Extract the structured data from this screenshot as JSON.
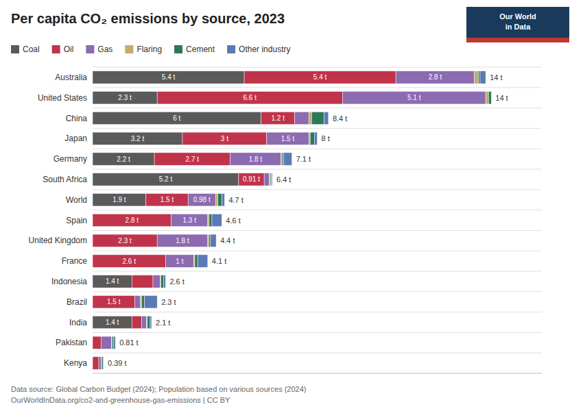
{
  "chart_data": {
    "type": "bar",
    "orientation": "horizontal",
    "stacked": true,
    "title": "Per capita CO₂ emissions by source, 2023",
    "source": "Data source: Global Carbon Budget (2024); Population based on various sources (2024)",
    "source_url": "OurWorldInData.org/co2-and-greenhouse-gas-emissions | CC BY",
    "annotations": [
      "Our World",
      "in Data"
    ],
    "categories": [
      "Australia",
      "United States",
      "China",
      "Japan",
      "Germany",
      "South Africa",
      "World",
      "Spain",
      "United Kingdom",
      "France",
      "Indonesia",
      "Brazil",
      "India",
      "Pakistan",
      "Kenya"
    ],
    "series": [
      {
        "name": "Coal",
        "color": "#5a5a5a",
        "values": [
          5.4,
          2.3,
          6.0,
          3.2,
          2.2,
          5.2,
          1.9,
          0.0,
          0.0,
          0.0,
          1.4,
          0.0,
          1.4,
          0.0,
          0.0
        ],
        "value_labels": [
          "5.4 t",
          "2.3 t",
          "6 t",
          "3.2 t",
          "2.2 t",
          "5.2 t",
          "1.9 t",
          null,
          null,
          null,
          "1.4 t",
          null,
          "1.4 t",
          null,
          null
        ]
      },
      {
        "name": "Oil",
        "color": "#c0344b",
        "values": [
          5.4,
          6.6,
          1.2,
          3.0,
          2.7,
          0.91,
          1.5,
          2.8,
          2.3,
          2.6,
          0.75,
          1.5,
          0.35,
          0.3,
          0.22
        ],
        "value_labels": [
          "5.4 t",
          "6.6 t",
          "1.2 t",
          "3 t",
          "2.7 t",
          "0.91 t",
          "1.5 t",
          "2.8 t",
          "2.3 t",
          "2.6 t",
          null,
          "1.5 t",
          null,
          null,
          null
        ]
      },
      {
        "name": "Gas",
        "color": "#8c6bb1",
        "values": [
          2.8,
          5.1,
          0.5,
          1.5,
          1.8,
          0.18,
          0.98,
          1.3,
          1.8,
          1.0,
          0.25,
          0.2,
          0.17,
          0.37,
          0.09
        ],
        "value_labels": [
          "2.8 t",
          "5.1 t",
          null,
          "1.5 t",
          "1.8 t",
          null,
          "0.98 t",
          "1.3 t",
          "1.8 t",
          "1 t",
          null,
          null,
          null,
          null,
          null
        ]
      },
      {
        "name": "Flaring",
        "color": "#c8a96e",
        "values": [
          0.14,
          0.1,
          0.1,
          0.05,
          0.05,
          0.04,
          0.08,
          0.05,
          0.04,
          0.04,
          0.03,
          0.05,
          0.03,
          0.02,
          0.01
        ],
        "value_labels": [
          null,
          null,
          null,
          null,
          null,
          null,
          null,
          null,
          null,
          null,
          null,
          null,
          null,
          null,
          null
        ]
      },
      {
        "name": "Cement",
        "color": "#2a7a5a",
        "values": [
          0.06,
          0.1,
          0.45,
          0.15,
          0.06,
          0.04,
          0.15,
          0.1,
          0.06,
          0.1,
          0.1,
          0.1,
          0.1,
          0.05,
          0.05
        ],
        "value_labels": [
          null,
          null,
          null,
          null,
          null,
          null,
          null,
          null,
          null,
          null,
          null,
          null,
          null,
          null,
          null
        ]
      },
      {
        "name": "Other industry",
        "color": "#5b7ab5",
        "values": [
          0.2,
          0.0,
          0.15,
          0.1,
          0.29,
          0.03,
          0.09,
          0.35,
          0.2,
          0.36,
          0.07,
          0.45,
          0.05,
          0.07,
          0.02
        ],
        "value_labels": [
          null,
          null,
          null,
          null,
          null,
          null,
          null,
          null,
          null,
          null,
          null,
          null,
          null,
          null,
          null
        ]
      }
    ],
    "totals": {
      "values": [
        14.0,
        14.2,
        8.4,
        8.0,
        7.1,
        6.4,
        4.7,
        4.6,
        4.4,
        4.1,
        2.6,
        2.3,
        2.1,
        0.81,
        0.39
      ],
      "value_labels": [
        "14 t",
        "14 t",
        "8.4 t",
        "8 t",
        "7.1 t",
        "6.4 t",
        "4.7 t",
        "4.6 t",
        "4.4 t",
        "4.1 t",
        "2.6 t",
        "2.3 t",
        "2.1 t",
        "0.81 t",
        "0.39 t"
      ]
    },
    "xlim": [
      0,
      16
    ],
    "data_labels": true,
    "tick_labels": "y",
    "grid": true,
    "legend": "top"
  }
}
